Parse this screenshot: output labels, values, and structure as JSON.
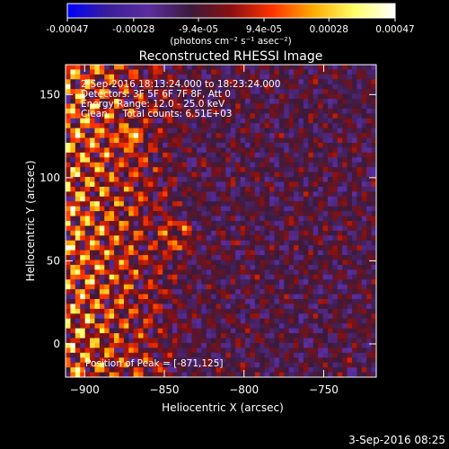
{
  "chart_data": {
    "type": "heatmap",
    "title": "Reconstructed RHESSI Image",
    "xlabel": "Heliocentric X (arcsec)",
    "ylabel": "Heliocentric Y (arcsec)",
    "xlim": [
      -912,
      -717
    ],
    "ylim": [
      -20,
      168
    ],
    "x_ticks": [
      -900,
      -850,
      -800,
      -750
    ],
    "y_ticks": [
      0,
      50,
      100,
      150
    ],
    "colorbar": {
      "min": -0.00047,
      "max": 0.00047,
      "ticks": [
        -0.00047,
        -0.00028,
        -9.4e-05,
        9.4e-05,
        0.00028,
        0.00047
      ],
      "tick_labels": [
        "-0.00047",
        "-0.00028",
        "-9.4e-05",
        "9.4e-05",
        "0.00028",
        "0.00047"
      ],
      "unit_label": "(photons cm⁻² s⁻¹ asec⁻²)",
      "colors": [
        "#0000ff",
        "#3c1e99",
        "#5a2e9e",
        "#3a1a3c",
        "#8a1010",
        "#ff3300",
        "#ffaa00",
        "#ffff66",
        "#ffffff"
      ]
    },
    "annotations": [
      "2-Sep-2016 18:13:24.000 to 18:23:24.000",
      "Detectors: 3F 5F 6F 7F 8F, Att 0",
      "Energy Range: 12.0 - 25.0 keV",
      "Clean     Total counts: 6.51E+03"
    ],
    "peak_label": "Position of Peak = [-871,125]",
    "peak_position": [
      -871,
      125
    ],
    "image_grid": {
      "nx": 64,
      "ny": 64
    }
  },
  "footer": {
    "timestamp": "3-Sep-2016 08:25"
  }
}
